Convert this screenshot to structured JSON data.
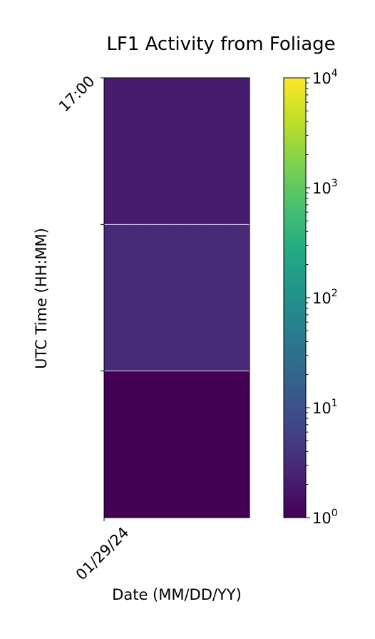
{
  "chart_data": {
    "type": "heatmap",
    "title": "LF1 Activity from Foliage",
    "xlabel": "Date (MM/DD/YY)",
    "ylabel": "UTC Time (HH:MM)",
    "x_ticks": [
      "01/29/24"
    ],
    "y_ticks": [
      "17:00",
      "",
      ""
    ],
    "colormap": "viridis",
    "color_scale": "log",
    "colorbar_range": [
      1,
      10000
    ],
    "colorbar_ticks": [
      {
        "base": "10",
        "exp": "4",
        "value": 10000
      },
      {
        "base": "10",
        "exp": "3",
        "value": 1000
      },
      {
        "base": "10",
        "exp": "2",
        "value": 100
      },
      {
        "base": "10",
        "exp": "1",
        "value": 10
      },
      {
        "base": "10",
        "exp": "0",
        "value": 1
      }
    ],
    "cells": [
      {
        "date": "01/29/24",
        "row": 0,
        "value": 2
      },
      {
        "date": "01/29/24",
        "row": 1,
        "value": 3
      },
      {
        "date": "01/29/24",
        "row": 2,
        "value": 1
      }
    ],
    "grid": false
  }
}
